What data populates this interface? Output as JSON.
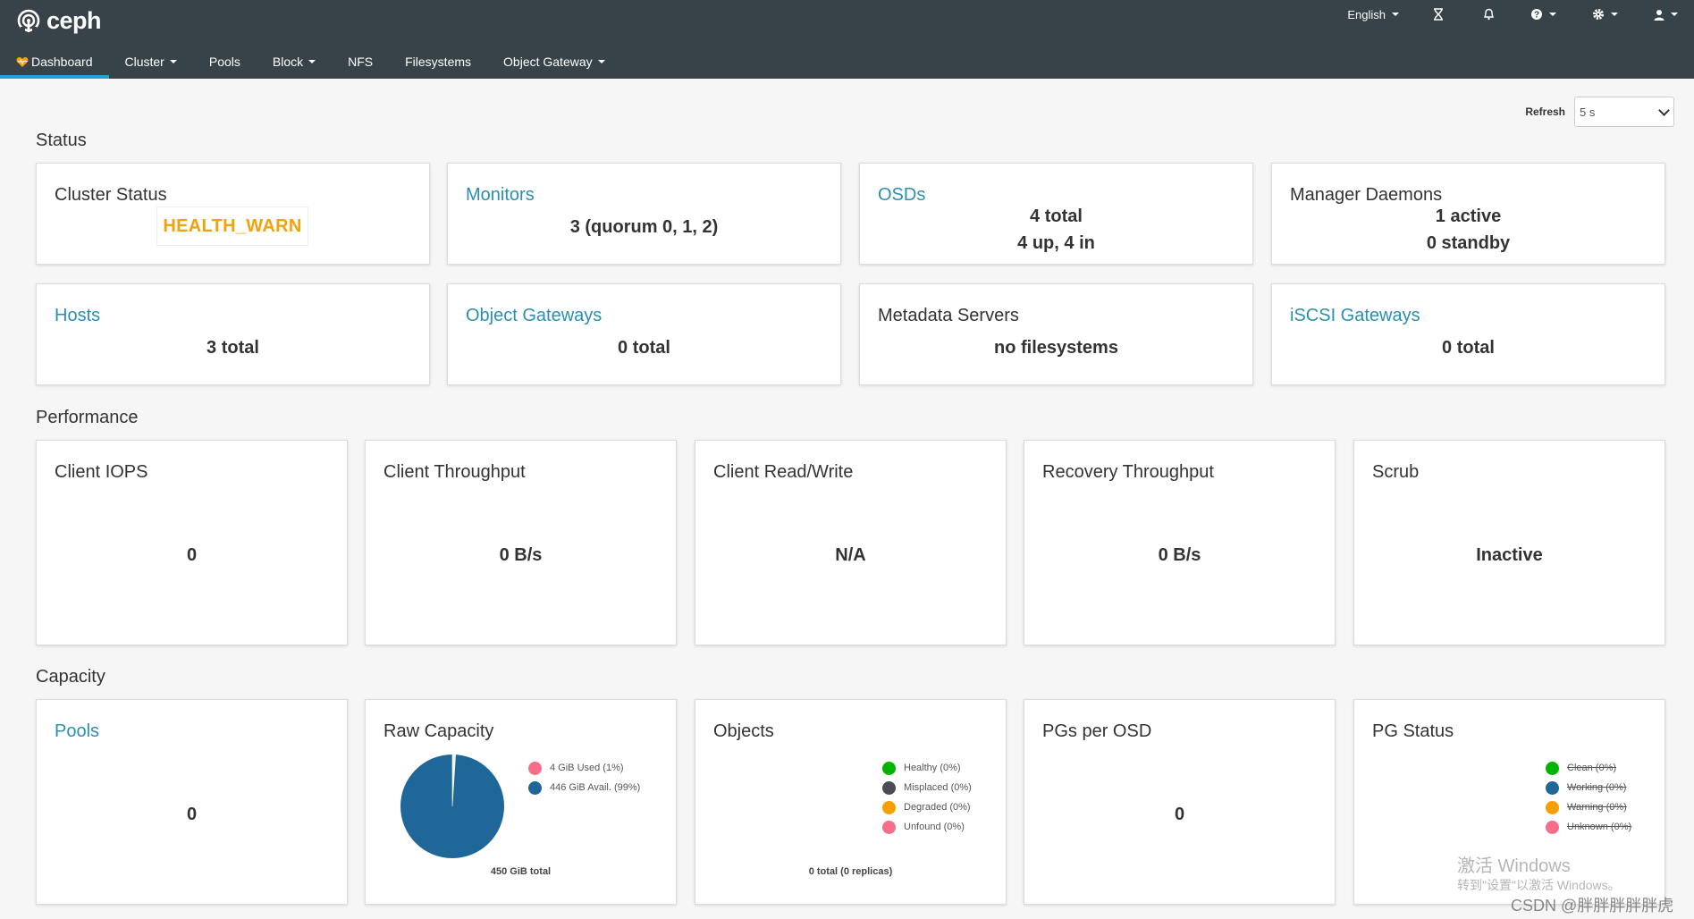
{
  "header": {
    "brand": "ceph",
    "language": "English",
    "nav": [
      {
        "label": "Dashboard"
      },
      {
        "label": "Cluster"
      },
      {
        "label": "Pools"
      },
      {
        "label": "Block"
      },
      {
        "label": "NFS"
      },
      {
        "label": "Filesystems"
      },
      {
        "label": "Object Gateway"
      }
    ],
    "colors": {
      "bar": "#374249",
      "active_underline": "#2a9fd6"
    }
  },
  "refresh": {
    "label": "Refresh",
    "value": "5 s"
  },
  "sections": {
    "status": "Status",
    "performance": "Performance",
    "capacity": "Capacity"
  },
  "status": {
    "cluster_status": {
      "title": "Cluster Status",
      "value": "HEALTH_WARN"
    },
    "monitors": {
      "title": "Monitors",
      "value": "3 (quorum 0, 1, 2)"
    },
    "osds": {
      "title": "OSDs",
      "line1": "4 total",
      "line2": "4 up, 4 in"
    },
    "managers": {
      "title": "Manager Daemons",
      "line1": "1 active",
      "line2": "0 standby"
    },
    "hosts": {
      "title": "Hosts",
      "value": "3 total"
    },
    "object_gateways": {
      "title": "Object Gateways",
      "value": "0 total"
    },
    "metadata_servers": {
      "title": "Metadata Servers",
      "value": "no filesystems"
    },
    "iscsi_gateways": {
      "title": "iSCSI Gateways",
      "value": "0 total"
    }
  },
  "performance": [
    {
      "title": "Client IOPS",
      "value": "0"
    },
    {
      "title": "Client Throughput",
      "value": "0 B/s"
    },
    {
      "title": "Client Read/Write",
      "value": "N/A"
    },
    {
      "title": "Recovery Throughput",
      "value": "0 B/s"
    },
    {
      "title": "Scrub",
      "value": "Inactive"
    }
  ],
  "capacity": {
    "pools": {
      "title": "Pools",
      "value": "0"
    },
    "raw_capacity": {
      "title": "Raw Capacity",
      "legend": [
        {
          "label": "4 GiB Used (1%)",
          "color": "#f76e8a"
        },
        {
          "label": "446 GiB Avail. (99%)",
          "color": "#1f6699"
        }
      ],
      "used_fraction": 0.01,
      "total": "450 GiB total"
    },
    "objects": {
      "title": "Objects",
      "legend": [
        {
          "label": "Healthy (0%)",
          "color": "#00b400"
        },
        {
          "label": "Misplaced (0%)",
          "color": "#4b4b55"
        },
        {
          "label": "Degraded (0%)",
          "color": "#f5a000"
        },
        {
          "label": "Unfound (0%)",
          "color": "#f76e8a"
        }
      ],
      "total": "0 total (0 replicas)"
    },
    "pgs_per_osd": {
      "title": "PGs per OSD",
      "value": "0"
    },
    "pg_status": {
      "title": "PG Status",
      "legend": [
        {
          "label": "Clean (0%)",
          "color": "#00b400"
        },
        {
          "label": "Working (0%)",
          "color": "#1f6699"
        },
        {
          "label": "Warning (0%)",
          "color": "#f5a000"
        },
        {
          "label": "Unknown (0%)",
          "color": "#f76e8a"
        }
      ]
    }
  },
  "overlay": {
    "activate_title": "激活 Windows",
    "activate_sub": "转到\"设置\"以激活 Windows。",
    "credit": "CSDN @胖胖胖胖胖虎"
  }
}
